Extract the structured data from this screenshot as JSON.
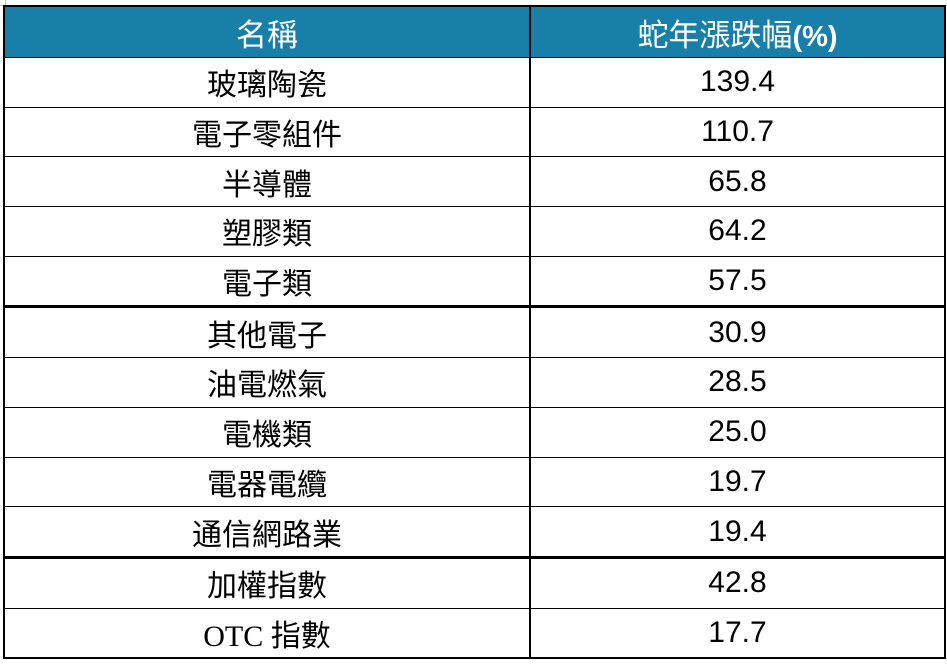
{
  "chart_data": {
    "type": "table",
    "title": "",
    "columns": [
      "名稱",
      "蛇年漲跌幅(%)"
    ],
    "rows": [
      [
        "玻璃陶瓷",
        "139.4"
      ],
      [
        "電子零組件",
        "110.7"
      ],
      [
        "半導體",
        "65.8"
      ],
      [
        "塑膠類",
        "64.2"
      ],
      [
        "電子類",
        "57.5"
      ],
      [
        "其他電子",
        "30.9"
      ],
      [
        "油電燃氣",
        "28.5"
      ],
      [
        "電機類",
        "25.0"
      ],
      [
        "電器電纜",
        "19.7"
      ],
      [
        "通信網路業",
        "19.4"
      ],
      [
        "加權指數",
        "42.8"
      ],
      [
        "OTC 指數",
        "17.7"
      ]
    ],
    "layout": {
      "thick_separator_after_rows": [
        5,
        10
      ],
      "grid": true,
      "header_position": "top"
    }
  },
  "table": {
    "header": {
      "name_label": "名稱",
      "change_label_main": "蛇年漲跌幅",
      "change_label_suffix": "(%)"
    }
  },
  "colors": {
    "header_bg": "#187FA8",
    "header_text": "#FFFFFF",
    "border": "#000000",
    "body_text": "#000000",
    "row_bg": "#FFFFFF"
  }
}
